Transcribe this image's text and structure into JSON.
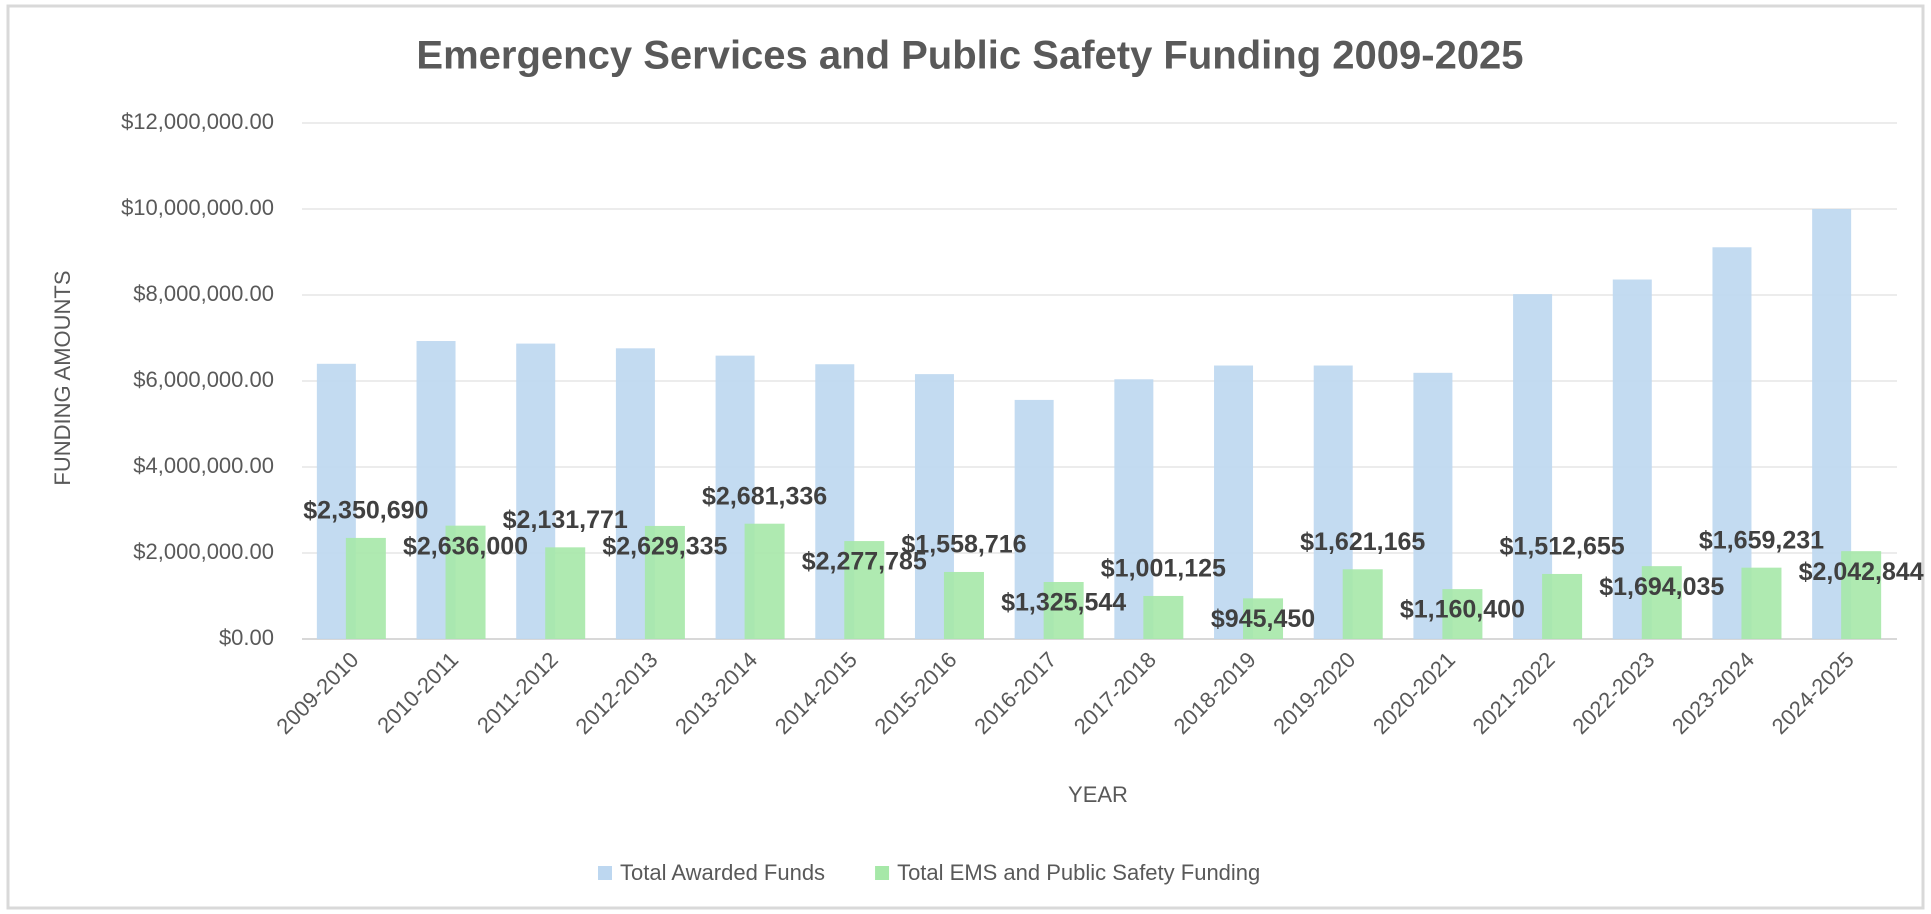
{
  "chart_data": {
    "type": "bar",
    "title": "Emergency Services and Public Safety Funding 2009-2025",
    "x_label": "YEAR",
    "y_label": "FUNDING AMOUNTS",
    "categories": [
      "2009-2010",
      "2010-2011",
      "2011-2012",
      "2012-2013",
      "2013-2014",
      "2014-2015",
      "2015-2016",
      "2016-2017",
      "2017-2018",
      "2018-2019",
      "2019-2020",
      "2020-2021",
      "2021-2022",
      "2022-2023",
      "2023-2024",
      "2024-2025"
    ],
    "series": [
      {
        "name": "Total Awarded Funds",
        "color": "#bdd7f0",
        "values": [
          6400000,
          6930000,
          6870000,
          6760000,
          6590000,
          6390000,
          6160000,
          5560000,
          6040000,
          6360000,
          6360000,
          6190000,
          8020000,
          8360000,
          9110000,
          10000000
        ]
      },
      {
        "name": "Total EMS and Public Safety Funding",
        "color": "#a6e8a8",
        "values": [
          2350690,
          2636000,
          2131771,
          2629335,
          2681336,
          2277785,
          1558716,
          1325544,
          1001125,
          945450,
          1621165,
          1160400,
          1512655,
          1694035,
          1659231,
          2042844
        ],
        "value_labels": [
          "$2,350,690",
          "$2,636,000",
          "$2,131,771",
          "$2,629,335",
          "$2,681,336",
          "$2,277,785",
          "$1,558,716",
          "$1,325,544",
          "$1,001,125",
          "$945,450",
          "$1,621,165",
          "$1,160,400",
          "$1,512,655",
          "$1,694,035",
          "$1,659,231",
          "$2,042,844"
        ]
      }
    ],
    "ylim": [
      0,
      12000000
    ],
    "yticks": [
      {
        "value": 0,
        "label": "$0.00"
      },
      {
        "value": 2000000,
        "label": "$2,000,000.00"
      },
      {
        "value": 4000000,
        "label": "$4,000,000.00"
      },
      {
        "value": 6000000,
        "label": "$6,000,000.00"
      },
      {
        "value": 8000000,
        "label": "$8,000,000.00"
      },
      {
        "value": 10000000,
        "label": "$10,000,000.00"
      },
      {
        "value": 12000000,
        "label": "$12,000,000.00"
      }
    ],
    "grid": true,
    "legend": "bottom"
  }
}
